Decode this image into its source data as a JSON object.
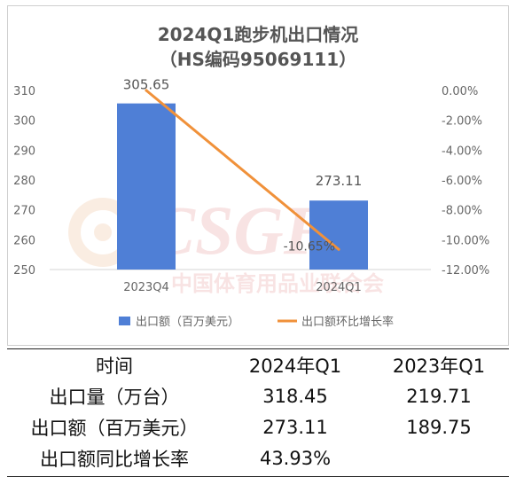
{
  "chart_data": {
    "type": "bar+line",
    "title": "2024Q1跑步机出口情况",
    "subtitle": "（HS编码95069111）",
    "categories": [
      "2023Q4",
      "2024Q1"
    ],
    "series": [
      {
        "name": "出口额（百万美元）",
        "type": "bar",
        "axis": "left",
        "color": "#4f7fd6",
        "values": [
          305.65,
          273.11
        ],
        "labels": [
          "305.65",
          "273.11"
        ]
      },
      {
        "name": "出口额环比增长率",
        "type": "line",
        "axis": "right",
        "color": "#f0913a",
        "values": [
          0.0,
          -10.65
        ],
        "labels": [
          "",
          "-10.65%"
        ]
      }
    ],
    "left_axis": {
      "min": 250,
      "max": 310,
      "ticks": [
        250,
        260,
        270,
        280,
        290,
        300,
        310
      ],
      "tick_labels": [
        "250",
        "260",
        "270",
        "280",
        "290",
        "300",
        "310"
      ]
    },
    "right_axis": {
      "min": -12,
      "max": 0,
      "ticks": [
        0,
        -2,
        -4,
        -6,
        -8,
        -10,
        -12
      ],
      "tick_labels": [
        "0.00%",
        "-2.00%",
        "-4.00%",
        "-6.00%",
        "-8.00%",
        "-10.00%",
        "-12.00%"
      ]
    },
    "grid": false,
    "legend_position": "bottom",
    "watermark": "CSGF 中国体育用品业联合会"
  },
  "table": {
    "header": [
      "时间",
      "2024年Q1",
      "2023年Q1"
    ],
    "rows": [
      [
        "出口量（万台）",
        "318.45",
        "219.71"
      ],
      [
        "出口额（百万美元）",
        "273.11",
        "189.75"
      ],
      [
        "出口额同比增长率",
        "43.93%",
        ""
      ]
    ]
  }
}
